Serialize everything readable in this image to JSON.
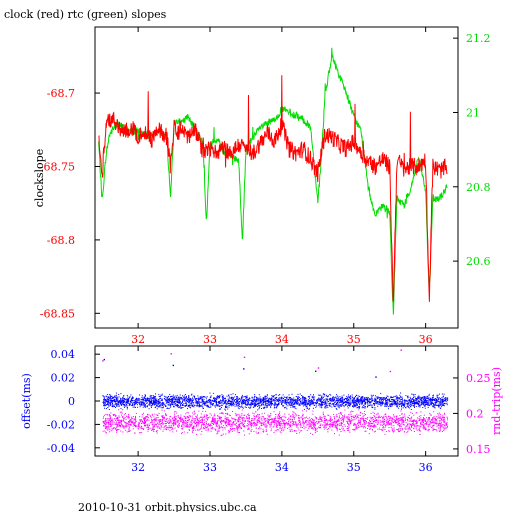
{
  "page_title": "clock (red) rtc (green) slopes",
  "footer": "2010-10-31  orbit.physics.ubc.ca",
  "colors": {
    "clock": "#ff0000",
    "rtc": "#00dd00",
    "offset_axis": "#0000ff",
    "offset_points": "#0000ff",
    "rtt_axis": "#ff00ff",
    "rtt_points": "#ff00ff",
    "frame": "#000000"
  },
  "chart_data": [
    {
      "type": "line",
      "title": "clock (red) rtc (green) slopes",
      "xlabel": "",
      "ylabel": "clockslope",
      "y2label": "",
      "xlim": [
        31.4,
        36.45
      ],
      "ylim": [
        -68.86,
        -68.655
      ],
      "y2lim": [
        20.42,
        21.23
      ],
      "x_ticks": [
        32,
        33,
        34,
        35,
        36
      ],
      "y_ticks": [
        -68.7,
        -68.75,
        -68.8,
        -68.85
      ],
      "y_tick_labels": [
        "-68.7",
        "-68.75",
        "-68.8",
        "-68.85"
      ],
      "y2_ticks": [
        21.2,
        21.0,
        20.8,
        20.6
      ],
      "y2_tick_labels": [
        "21.2",
        "21",
        "20.8",
        "20.6"
      ],
      "grid": false,
      "series": [
        {
          "name": "clock",
          "axis": "left",
          "x": [
            31.45,
            31.5,
            31.55,
            31.6,
            31.7,
            31.8,
            31.9,
            32.0,
            32.1,
            32.2,
            32.3,
            32.4,
            32.45,
            32.5,
            32.55,
            32.6,
            32.7,
            32.8,
            32.9,
            33.0,
            33.1,
            33.2,
            33.3,
            33.4,
            33.5,
            33.6,
            33.7,
            33.8,
            33.9,
            34.0,
            34.1,
            34.2,
            34.3,
            34.4,
            34.5,
            34.55,
            34.6,
            34.7,
            34.8,
            34.9,
            35.0,
            35.1,
            35.2,
            35.3,
            35.4,
            35.5,
            35.55,
            35.6,
            35.7,
            35.8,
            35.9,
            36.0,
            36.05,
            36.1,
            36.2,
            36.3
          ],
          "values": [
            -68.73,
            -68.757,
            -68.722,
            -68.718,
            -68.72,
            -68.727,
            -68.723,
            -68.729,
            -68.728,
            -68.732,
            -68.725,
            -68.73,
            -68.75,
            -68.724,
            -68.728,
            -68.723,
            -68.73,
            -68.725,
            -68.74,
            -68.738,
            -68.74,
            -68.738,
            -68.741,
            -68.735,
            -68.738,
            -68.741,
            -68.734,
            -68.727,
            -68.733,
            -68.721,
            -68.738,
            -68.741,
            -68.738,
            -68.745,
            -68.755,
            -68.74,
            -68.728,
            -68.73,
            -68.735,
            -68.738,
            -68.733,
            -68.74,
            -68.747,
            -68.75,
            -68.745,
            -68.75,
            -68.845,
            -68.745,
            -68.752,
            -68.75,
            -68.75,
            -68.745,
            -68.84,
            -68.75,
            -68.753,
            -68.75
          ]
        },
        {
          "name": "rtc",
          "axis": "right",
          "x": [
            31.45,
            31.5,
            31.55,
            31.6,
            31.7,
            31.8,
            31.9,
            32.0,
            32.1,
            32.2,
            32.3,
            32.4,
            32.45,
            32.5,
            32.55,
            32.6,
            32.7,
            32.8,
            32.9,
            32.95,
            33.0,
            33.05,
            33.1,
            33.2,
            33.3,
            33.4,
            33.45,
            33.5,
            33.55,
            33.6,
            33.7,
            33.8,
            33.9,
            34.0,
            34.1,
            34.2,
            34.3,
            34.4,
            34.5,
            34.55,
            34.6,
            34.7,
            34.8,
            34.9,
            35.0,
            35.1,
            35.2,
            35.3,
            35.4,
            35.5,
            35.55,
            35.6,
            35.7,
            35.8,
            35.9,
            36.0,
            36.05,
            36.1,
            36.2,
            36.3
          ],
          "values": [
            20.92,
            20.76,
            20.88,
            20.94,
            20.97,
            20.96,
            20.95,
            20.95,
            20.94,
            20.94,
            20.95,
            20.93,
            20.77,
            20.97,
            20.98,
            20.97,
            20.99,
            20.95,
            20.92,
            20.7,
            20.91,
            20.92,
            20.93,
            20.89,
            20.88,
            20.87,
            20.65,
            20.9,
            20.92,
            20.93,
            20.96,
            20.97,
            20.98,
            21.01,
            21.0,
            20.99,
            20.98,
            20.96,
            20.76,
            20.88,
            21.05,
            21.15,
            21.1,
            21.05,
            20.99,
            20.95,
            20.8,
            20.72,
            20.75,
            20.73,
            20.45,
            20.77,
            20.75,
            20.8,
            20.88,
            20.79,
            20.5,
            20.77,
            20.77,
            20.8
          ]
        }
      ]
    },
    {
      "type": "scatter",
      "title": "",
      "xlabel": "",
      "ylabel": "offset(ms)",
      "y2label": "rnd-trip(ms)",
      "xlim": [
        31.4,
        36.45
      ],
      "ylim": [
        -0.047,
        0.047
      ],
      "y2lim": [
        0.14,
        0.295
      ],
      "x_ticks": [
        32,
        33,
        34,
        35,
        36
      ],
      "y_ticks": [
        0.04,
        0.02,
        0,
        -0.02,
        -0.04
      ],
      "y_tick_labels": [
        "0.04",
        "0.02",
        "0",
        "-0.02",
        "-0.04"
      ],
      "y2_ticks": [
        0.25,
        0.2,
        0.15
      ],
      "y2_tick_labels": [
        "0.25",
        "0.2",
        "0.15"
      ],
      "grid": false,
      "series": [
        {
          "name": "offset",
          "axis": "left",
          "x_range": [
            31.5,
            36.3
          ],
          "values_center": 0,
          "values_spread": 0.008,
          "outliers": [
            [
              31.52,
              0.036
            ],
            [
              32.48,
              0.031
            ],
            [
              33.46,
              0.028
            ],
            [
              34.46,
              0.026
            ],
            [
              35.3,
              0.021
            ]
          ]
        },
        {
          "name": "rnd-trip",
          "axis": "right",
          "x_range": [
            31.5,
            36.3
          ],
          "values_center": 0.188,
          "values_spread": 0.02,
          "outliers": [
            [
              31.5,
              0.275
            ],
            [
              32.45,
              0.285
            ],
            [
              33.47,
              0.28
            ],
            [
              34.5,
              0.265
            ],
            [
              35.5,
              0.26
            ],
            [
              35.65,
              0.29
            ]
          ]
        }
      ]
    }
  ]
}
